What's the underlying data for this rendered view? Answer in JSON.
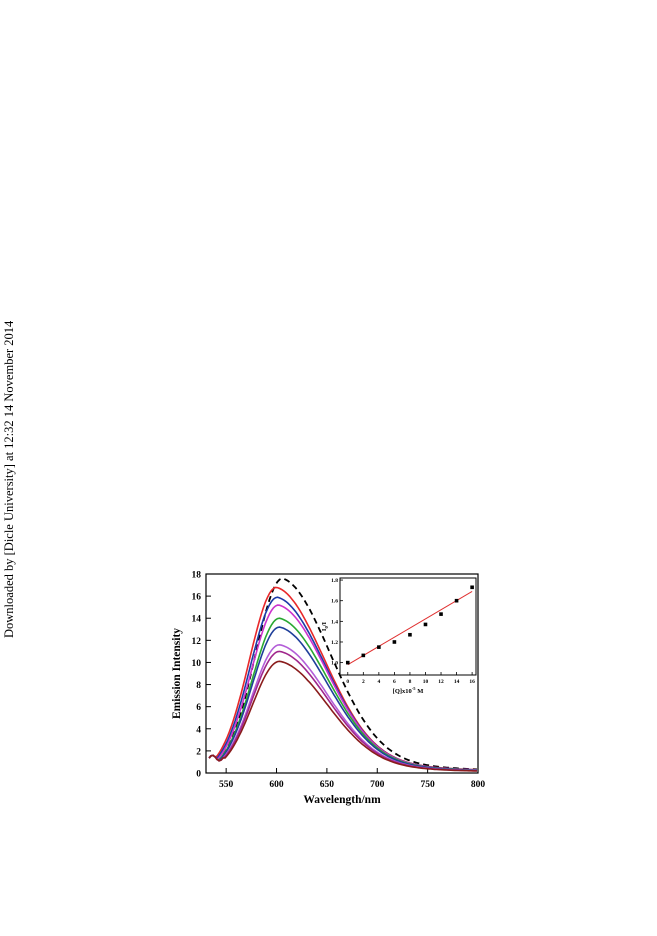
{
  "watermark": {
    "text": "Downloaded by [Dicle University] at 12:32 14 November 2014"
  },
  "chart_data": [
    {
      "type": "line",
      "xlabel": "Wavelength/nm",
      "ylabel": "Emission Intensity",
      "xlim": [
        530,
        800
      ],
      "ylim": [
        0,
        18
      ],
      "xticks": [
        550,
        600,
        650,
        700,
        750,
        800
      ],
      "yticks": [
        0,
        2,
        4,
        6,
        8,
        10,
        12,
        14,
        16,
        18
      ],
      "colors": [
        "#000000",
        "#e8282a",
        "#1c3aa8",
        "#cc33cc",
        "#2aa832",
        "#1f3f9a",
        "#b35dd8",
        "#a0268c",
        "#8a1c1c"
      ],
      "series": [
        {
          "style": "dashed",
          "peak_x": 606,
          "peak_y": 17.6
        },
        {
          "style": "solid",
          "peak_x": 600,
          "peak_y": 16.8
        },
        {
          "style": "solid",
          "peak_x": 601,
          "peak_y": 15.9
        },
        {
          "style": "solid",
          "peak_x": 602,
          "peak_y": 15.2
        },
        {
          "style": "solid",
          "peak_x": 603,
          "peak_y": 14.0
        },
        {
          "style": "solid",
          "peak_x": 603,
          "peak_y": 13.2
        },
        {
          "style": "solid",
          "peak_x": 603,
          "peak_y": 11.6
        },
        {
          "style": "solid",
          "peak_x": 603,
          "peak_y": 11.0
        },
        {
          "style": "solid",
          "peak_x": 603,
          "peak_y": 10.1
        }
      ]
    },
    {
      "type": "scatter",
      "xlabel": "[Q]x10",
      "xlabel_exp": "-5",
      "xlabel_unit": " M",
      "ylabel": "I",
      "ylabel_sub": "0",
      "ylabel_tail": "/I",
      "xlim": [
        -1,
        16.5
      ],
      "ylim": [
        0.88,
        1.82
      ],
      "xticks": [
        0,
        2,
        4,
        6,
        8,
        10,
        12,
        14,
        16
      ],
      "yticks": [
        1.0,
        1.2,
        1.4,
        1.6,
        1.8
      ],
      "ytick_labels": [
        "1.0",
        "1.2",
        "1.4",
        "1.6",
        "1.8"
      ],
      "points": [
        {
          "x": 0,
          "y": 1.0
        },
        {
          "x": 2,
          "y": 1.07
        },
        {
          "x": 4,
          "y": 1.15
        },
        {
          "x": 6,
          "y": 1.2
        },
        {
          "x": 8,
          "y": 1.27
        },
        {
          "x": 10,
          "y": 1.37
        },
        {
          "x": 12,
          "y": 1.47
        },
        {
          "x": 14,
          "y": 1.6
        },
        {
          "x": 16,
          "y": 1.73
        }
      ],
      "fit": {
        "x0": 0,
        "y0": 0.98,
        "x1": 16,
        "y1": 1.69,
        "color": "#e03030"
      }
    }
  ]
}
